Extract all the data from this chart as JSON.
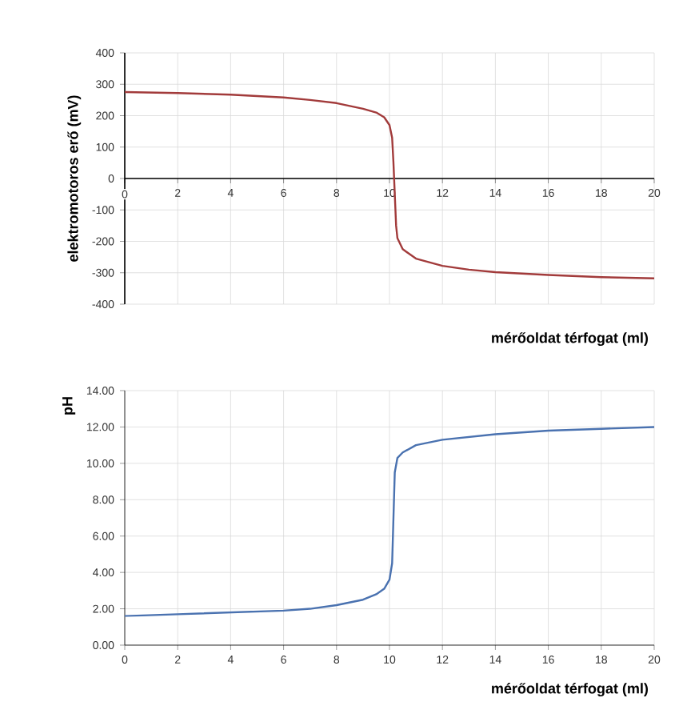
{
  "chart_data": [
    {
      "type": "line",
      "xlabel": "mérőoldat térfogat (ml)",
      "ylabel": "elektromotoros erő (mV)",
      "xlim": [
        0,
        20
      ],
      "ylim": [
        -400,
        400
      ],
      "xticks": [
        0,
        2,
        4,
        6,
        8,
        10,
        12,
        14,
        16,
        18,
        20
      ],
      "yticks": [
        -400,
        -300,
        -200,
        -100,
        0,
        100,
        200,
        300,
        400
      ],
      "grid": true,
      "marker": "none",
      "series": [
        {
          "color": "#a23b3b",
          "x": [
            0,
            2,
            4,
            6,
            7,
            8,
            9,
            9.5,
            9.8,
            10,
            10.1,
            10.15,
            10.2,
            10.25,
            10.3,
            10.5,
            11,
            12,
            13,
            14,
            16,
            18,
            20
          ],
          "values": [
            275,
            272,
            267,
            258,
            250,
            240,
            222,
            210,
            195,
            170,
            130,
            50,
            -50,
            -150,
            -190,
            -225,
            -255,
            -278,
            -290,
            -298,
            -307,
            -314,
            -318
          ]
        }
      ]
    },
    {
      "type": "line",
      "xlabel": "mérőoldat térfogat (ml)",
      "ylabel": "pH",
      "xlim": [
        0,
        20
      ],
      "ylim": [
        0,
        14
      ],
      "xticks": [
        0,
        2,
        4,
        6,
        8,
        10,
        12,
        14,
        16,
        18,
        20
      ],
      "yticks": [
        {
          "value": 0,
          "label": "0.00"
        },
        {
          "value": 2,
          "label": "2.00"
        },
        {
          "value": 4,
          "label": "4.00"
        },
        {
          "value": 6,
          "label": "6.00"
        },
        {
          "value": 8,
          "label": "8.00"
        },
        {
          "value": 10,
          "label": "10.00"
        },
        {
          "value": 12,
          "label": "12.00"
        },
        {
          "value": 14,
          "label": "14.00"
        }
      ],
      "grid": true,
      "marker": "none",
      "series": [
        {
          "color": "#4a72b0",
          "x": [
            0,
            2,
            4,
            6,
            7,
            8,
            9,
            9.5,
            9.8,
            10,
            10.1,
            10.15,
            10.2,
            10.3,
            10.5,
            11,
            12,
            14,
            16,
            18,
            20
          ],
          "values": [
            1.6,
            1.7,
            1.8,
            1.9,
            2,
            2.2,
            2.5,
            2.8,
            3.1,
            3.6,
            4.5,
            7,
            9.5,
            10.3,
            10.6,
            11,
            11.3,
            11.6,
            11.8,
            11.9,
            12
          ]
        }
      ]
    }
  ]
}
